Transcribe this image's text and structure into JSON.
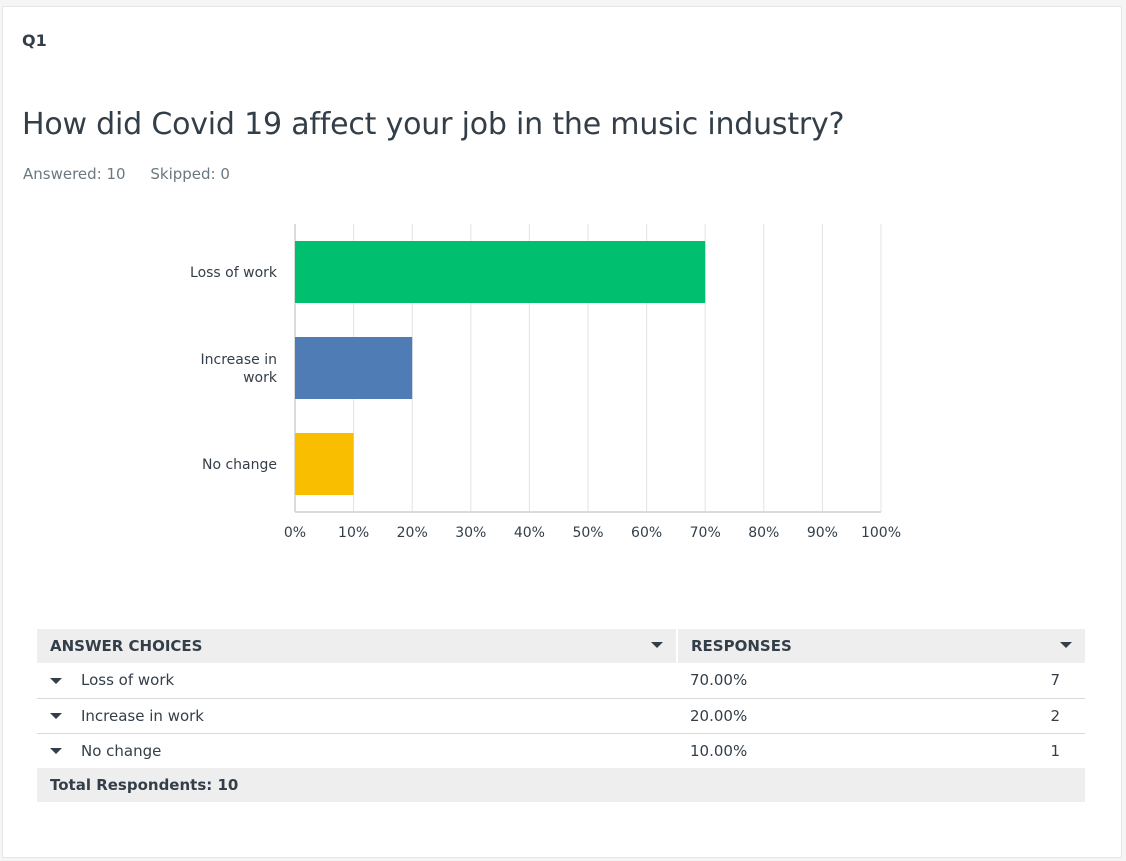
{
  "question": {
    "number": "Q1",
    "title": "How did Covid 19 affect your job in the music industry?",
    "answered": "Answered: 10",
    "skipped": "Skipped: 0"
  },
  "colors": {
    "series": [
      "#00bf6f",
      "#507cb6",
      "#f9be00"
    ],
    "grid": "#e3e3e3",
    "axis": "#cfcfcf"
  },
  "chart_data": {
    "type": "bar",
    "orientation": "horizontal",
    "categories": [
      [
        "Loss of work"
      ],
      [
        "Increase in",
        "work"
      ],
      [
        "No change"
      ]
    ],
    "values": [
      70,
      20,
      10
    ],
    "xlim": [
      0,
      100
    ],
    "xticks": [
      "0%",
      "10%",
      "20%",
      "30%",
      "40%",
      "50%",
      "60%",
      "70%",
      "80%",
      "90%",
      "100%"
    ],
    "grid": true
  },
  "table": {
    "headers": {
      "choices": "ANSWER CHOICES",
      "responses": "RESPONSES"
    },
    "rows": [
      {
        "choice": "Loss of work",
        "percent": "70.00%",
        "count": "7"
      },
      {
        "choice": "Increase in work",
        "percent": "20.00%",
        "count": "2"
      },
      {
        "choice": "No change",
        "percent": "10.00%",
        "count": "1"
      }
    ],
    "total": "Total Respondents: 10"
  }
}
